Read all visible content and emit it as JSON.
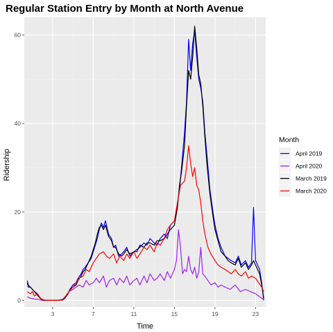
{
  "chart_data": {
    "type": "line",
    "title": "Regular Station Entry by Month at North Avenue",
    "xlabel": "Time",
    "ylabel": "Ridership",
    "xlim": [
      0.2,
      24.0
    ],
    "ylim": [
      -1.5,
      64
    ],
    "x_ticks": [
      3,
      7,
      11,
      15,
      19,
      23
    ],
    "y_ticks": [
      0,
      20,
      40,
      60
    ],
    "grid": true,
    "legend_title": "Month",
    "legend_position": "right",
    "series": [
      {
        "name": "April 2019",
        "color": "#0000ff",
        "x": [
          0.5,
          0.6,
          0.8,
          1.0,
          1.2,
          1.5,
          1.8,
          2.0,
          2.2,
          2.5,
          3.0,
          3.5,
          4.0,
          4.2,
          4.5,
          4.7,
          5.0,
          5.3,
          5.5,
          5.8,
          6.0,
          6.2,
          6.5,
          6.8,
          7.0,
          7.2,
          7.4,
          7.6,
          7.8,
          8.0,
          8.2,
          8.5,
          8.8,
          9.0,
          9.2,
          9.5,
          9.8,
          10.0,
          10.3,
          10.6,
          11.0,
          11.3,
          11.6,
          12.0,
          12.3,
          12.6,
          13.0,
          13.3,
          13.6,
          14.0,
          14.3,
          14.6,
          15.0,
          15.3,
          15.5,
          15.7,
          16.0,
          16.2,
          16.4,
          16.6,
          16.8,
          17.0,
          17.2,
          17.4,
          17.6,
          17.8,
          18.0,
          18.2,
          18.5,
          18.8,
          19.0,
          19.3,
          19.6,
          20.0,
          20.3,
          20.6,
          21.0,
          21.3,
          21.6,
          22.0,
          22.3,
          22.6,
          22.8,
          23.0,
          23.2,
          23.4,
          23.6,
          23.8
        ],
        "values": [
          4.5,
          3.5,
          3.0,
          2.5,
          2.0,
          1.5,
          0.5,
          0.2,
          0.1,
          0.0,
          0.0,
          0.0,
          0.2,
          0.5,
          1.5,
          2.5,
          3.5,
          4.0,
          5.0,
          6.0,
          7.0,
          7.5,
          8.5,
          9.5,
          11.0,
          12.5,
          14.0,
          16.0,
          17.5,
          16.5,
          18.0,
          15.0,
          14.0,
          12.0,
          12.5,
          10.0,
          10.5,
          11.0,
          12.0,
          10.0,
          11.0,
          11.5,
          12.0,
          13.0,
          12.5,
          14.0,
          13.0,
          12.5,
          14.0,
          15.0,
          14.0,
          17.0,
          18.0,
          22.0,
          25.0,
          30.0,
          38.0,
          45.0,
          59.0,
          52.0,
          58.0,
          61.0,
          55.0,
          50.0,
          48.0,
          45.0,
          38.0,
          33.0,
          25.0,
          20.0,
          17.0,
          14.0,
          12.0,
          10.0,
          9.5,
          9.0,
          8.5,
          10.0,
          8.0,
          9.0,
          7.5,
          8.5,
          21.0,
          9.0,
          8.0,
          7.0,
          4.0,
          0.0
        ]
      },
      {
        "name": "April 2020",
        "color": "#a020f0",
        "x": [
          0.5,
          0.8,
          1.2,
          1.6,
          2.0,
          2.5,
          3.0,
          3.5,
          4.0,
          4.3,
          4.6,
          5.0,
          5.3,
          5.6,
          6.0,
          6.3,
          6.6,
          7.0,
          7.3,
          7.6,
          8.0,
          8.3,
          8.6,
          9.0,
          9.3,
          9.6,
          10.0,
          10.3,
          10.6,
          11.0,
          11.3,
          11.6,
          12.0,
          12.3,
          12.6,
          13.0,
          13.3,
          13.6,
          14.0,
          14.3,
          14.6,
          15.0,
          15.2,
          15.4,
          15.6,
          15.8,
          16.0,
          16.2,
          16.4,
          16.6,
          16.8,
          17.0,
          17.2,
          17.4,
          17.6,
          17.8,
          18.0,
          18.3,
          18.6,
          19.0,
          19.3,
          19.6,
          20.0,
          20.5,
          21.0,
          21.5,
          22.0,
          22.5,
          23.0,
          23.3,
          23.6,
          23.8
        ],
        "values": [
          0.8,
          0.5,
          0.3,
          0.2,
          0.0,
          0.0,
          0.0,
          0.0,
          0.3,
          1.0,
          2.0,
          2.5,
          3.0,
          3.5,
          3.0,
          4.5,
          3.5,
          4.0,
          5.0,
          4.0,
          5.5,
          3.0,
          4.5,
          5.0,
          3.5,
          5.0,
          4.0,
          5.5,
          3.5,
          4.5,
          5.0,
          3.5,
          5.5,
          4.0,
          6.0,
          4.5,
          5.0,
          6.0,
          4.5,
          6.5,
          5.0,
          7.0,
          9.0,
          16.0,
          12.0,
          6.0,
          7.0,
          6.5,
          10.0,
          7.0,
          6.0,
          7.5,
          5.0,
          6.5,
          12.0,
          6.0,
          5.5,
          4.5,
          3.5,
          4.0,
          3.0,
          3.5,
          3.0,
          2.5,
          3.5,
          2.0,
          2.5,
          2.0,
          1.5,
          1.0,
          0.5,
          0.2
        ]
      },
      {
        "name": "March 2019",
        "color": "#000000",
        "x": [
          0.5,
          0.6,
          0.8,
          1.0,
          1.2,
          1.5,
          1.8,
          2.0,
          2.2,
          2.5,
          3.0,
          3.5,
          4.0,
          4.2,
          4.5,
          4.7,
          5.0,
          5.3,
          5.5,
          5.8,
          6.0,
          6.2,
          6.5,
          6.8,
          7.0,
          7.2,
          7.4,
          7.6,
          7.8,
          8.0,
          8.2,
          8.5,
          8.8,
          9.0,
          9.2,
          9.5,
          9.8,
          10.0,
          10.3,
          10.6,
          11.0,
          11.3,
          11.6,
          12.0,
          12.3,
          12.6,
          13.0,
          13.3,
          13.6,
          14.0,
          14.3,
          14.6,
          15.0,
          15.3,
          15.5,
          15.7,
          16.0,
          16.2,
          16.4,
          16.6,
          16.8,
          17.0,
          17.2,
          17.4,
          17.6,
          17.8,
          18.0,
          18.2,
          18.5,
          18.8,
          19.0,
          19.3,
          19.6,
          20.0,
          20.3,
          20.6,
          21.0,
          21.3,
          21.6,
          22.0,
          22.3,
          22.6,
          22.8,
          23.0,
          23.2,
          23.4,
          23.6,
          23.8
        ],
        "values": [
          4.0,
          3.0,
          3.0,
          2.5,
          2.0,
          1.2,
          0.4,
          0.1,
          0.0,
          0.0,
          0.0,
          0.0,
          0.1,
          0.5,
          1.5,
          2.5,
          3.0,
          3.5,
          4.5,
          5.5,
          6.5,
          7.0,
          8.5,
          10.0,
          11.5,
          13.0,
          15.0,
          16.5,
          17.0,
          16.0,
          17.0,
          14.5,
          13.5,
          12.0,
          12.0,
          10.5,
          10.0,
          10.5,
          11.5,
          10.5,
          11.0,
          11.0,
          12.5,
          12.0,
          13.0,
          13.0,
          12.5,
          13.5,
          13.5,
          14.0,
          15.0,
          16.0,
          17.0,
          21.0,
          26.0,
          29.0,
          35.0,
          44.0,
          52.0,
          50.0,
          55.0,
          62.0,
          57.0,
          51.0,
          49.0,
          44.0,
          37.0,
          31.0,
          24.0,
          19.0,
          16.0,
          13.5,
          11.0,
          10.0,
          9.0,
          8.5,
          8.0,
          9.5,
          7.5,
          8.5,
          7.0,
          8.0,
          9.0,
          8.0,
          7.0,
          6.0,
          3.5,
          0.5
        ]
      },
      {
        "name": "March 2020",
        "color": "#ff0000",
        "x": [
          0.5,
          0.8,
          1.0,
          1.2,
          1.5,
          1.8,
          2.0,
          2.3,
          2.6,
          3.0,
          3.5,
          4.0,
          4.3,
          4.6,
          5.0,
          5.3,
          5.6,
          6.0,
          6.3,
          6.6,
          7.0,
          7.3,
          7.6,
          8.0,
          8.3,
          8.6,
          9.0,
          9.3,
          9.6,
          10.0,
          10.3,
          10.6,
          11.0,
          11.3,
          11.6,
          12.0,
          12.3,
          12.6,
          13.0,
          13.3,
          13.6,
          14.0,
          14.3,
          14.6,
          15.0,
          15.3,
          15.6,
          16.0,
          16.2,
          16.4,
          16.6,
          16.8,
          17.0,
          17.2,
          17.4,
          17.6,
          17.8,
          18.0,
          18.3,
          18.6,
          19.0,
          19.3,
          19.6,
          20.0,
          20.3,
          20.6,
          21.0,
          21.3,
          21.6,
          22.0,
          22.3,
          22.6,
          23.0,
          23.3,
          23.6,
          23.8
        ],
        "values": [
          2.0,
          1.5,
          2.0,
          1.0,
          1.5,
          0.5,
          0.2,
          0.0,
          0.0,
          0.0,
          0.0,
          0.2,
          1.0,
          2.0,
          3.0,
          4.0,
          5.0,
          5.5,
          7.0,
          6.5,
          8.5,
          9.5,
          10.5,
          11.0,
          10.0,
          9.5,
          10.5,
          8.5,
          10.0,
          9.0,
          10.5,
          9.5,
          11.0,
          9.5,
          10.5,
          12.0,
          11.5,
          12.5,
          11.0,
          13.0,
          12.5,
          14.0,
          16.0,
          17.0,
          18.0,
          22.0,
          26.0,
          27.0,
          30.0,
          35.0,
          31.0,
          28.0,
          30.0,
          26.0,
          25.0,
          22.0,
          18.0,
          15.0,
          12.0,
          10.5,
          9.0,
          8.0,
          7.5,
          7.0,
          6.5,
          6.0,
          7.0,
          6.0,
          5.5,
          6.5,
          5.0,
          5.5,
          5.0,
          4.0,
          3.0,
          2.0
        ]
      }
    ]
  }
}
